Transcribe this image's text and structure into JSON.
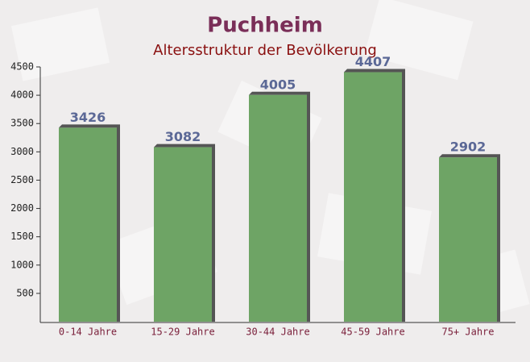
{
  "chart_data": {
    "type": "bar",
    "title": "Puchheim",
    "subtitle": "Altersstruktur der Bevölkerung",
    "categories": [
      "0-14 Jahre",
      "15-29 Jahre",
      "30-44 Jahre",
      "45-59 Jahre",
      "75+ Jahre"
    ],
    "values": [
      3426,
      3082,
      4005,
      4407,
      2902
    ],
    "color": "#6ea465",
    "ylim": [
      0,
      4500
    ],
    "yticks": [
      500,
      1000,
      1500,
      2000,
      2500,
      3000,
      3500,
      4000,
      4500
    ]
  }
}
